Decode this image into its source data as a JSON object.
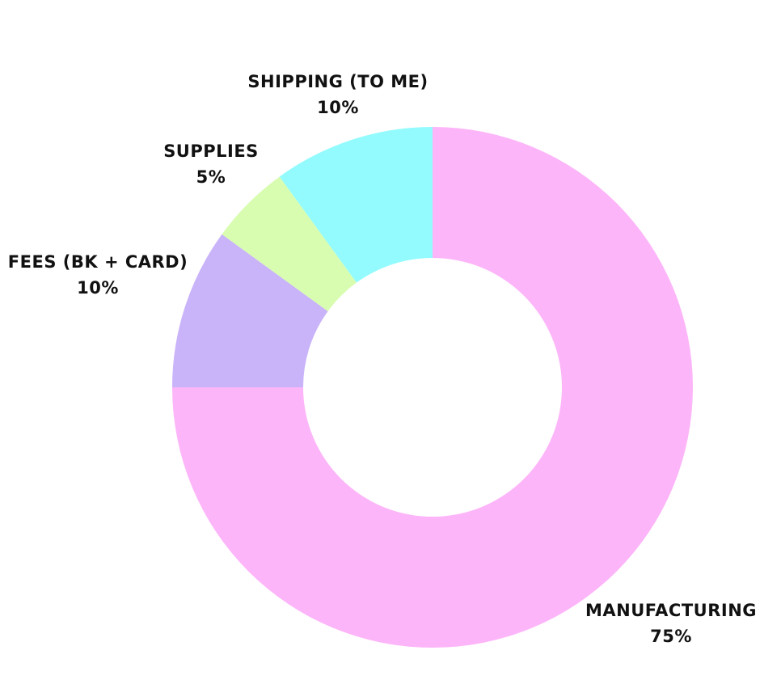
{
  "chart_data": {
    "type": "pie",
    "variant": "donut",
    "slices": [
      {
        "label": "MANUFACTURING",
        "value": 75,
        "value_label": "75%",
        "color": "#FDB5F9"
      },
      {
        "label": "FEES (BK + CARD)",
        "value": 10,
        "value_label": "10%",
        "color": "#C9B3F9"
      },
      {
        "label": "SUPPLIES",
        "value": 5,
        "value_label": "5%",
        "color": "#D8FDB0"
      },
      {
        "label": "SHIPPING (TO ME)",
        "value": 10,
        "value_label": "10%",
        "color": "#93FBFD"
      }
    ],
    "start_angle": "top",
    "direction": "clockwise",
    "legend": "none"
  }
}
